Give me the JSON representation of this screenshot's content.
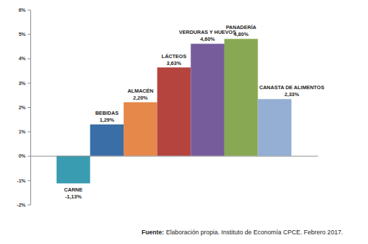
{
  "chart_data": {
    "type": "bar",
    "categories": [
      "CARNE",
      "BEBIDAS",
      "ALMACÉN",
      "LÁCTEOS",
      "VERDURAS Y HUEVOS",
      "PANADERÍA",
      "CANASTA DE ALIMENTOS"
    ],
    "values": [
      -1.13,
      1.29,
      2.2,
      3.63,
      4.6,
      4.8,
      2.33
    ],
    "value_labels": [
      "-1,13%",
      "1,29%",
      "2,20%",
      "3,63%",
      "4,60%",
      "4,80%",
      "2,33%"
    ],
    "colors": [
      "#3a9cb1",
      "#3a6ea6",
      "#e5884a",
      "#b5443f",
      "#775c9c",
      "#89a853",
      "#94aed4"
    ],
    "ylim": [
      -2,
      6
    ],
    "yticks": [
      {
        "value": -2,
        "label": "-2%"
      },
      {
        "value": -1,
        "label": "-1%"
      },
      {
        "value": 0,
        "label": "0%"
      },
      {
        "value": 1,
        "label": "1%"
      },
      {
        "value": 2,
        "label": "2%"
      },
      {
        "value": 3,
        "label": "3%"
      },
      {
        "value": 4,
        "label": "4%"
      },
      {
        "value": 5,
        "label": "5%"
      },
      {
        "value": 6,
        "label": "6%"
      }
    ],
    "data_labels": true,
    "tick_labels": "y",
    "annotations": [
      "Fuente:",
      "Elaboración propia. Instituto de Economía CPCE. Febrero 2017."
    ]
  }
}
